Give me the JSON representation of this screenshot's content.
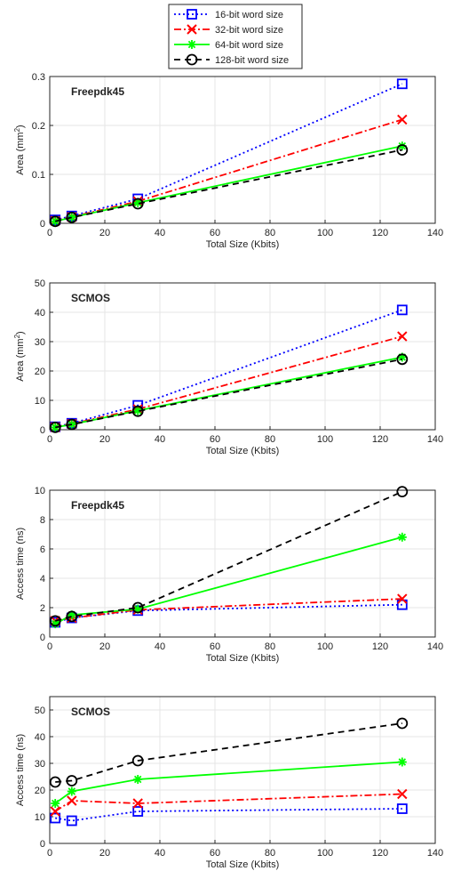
{
  "legend": [
    {
      "label": "16-bit word size",
      "color": "#0000ff",
      "marker": "square",
      "dash": "2 3"
    },
    {
      "label": "32-bit word size",
      "color": "#ff0000",
      "marker": "x",
      "dash": "8 3 2 3"
    },
    {
      "label": "64-bit word size",
      "color": "#00ff00",
      "marker": "asterisk",
      "dash": ""
    },
    {
      "label": "128-bit word size",
      "color": "#000000",
      "marker": "circle",
      "dash": "7 5"
    }
  ],
  "chart_data": [
    {
      "type": "line",
      "annotation": "Freepdk45",
      "xlabel": "Total Size (Kbits)",
      "ylabel": "Area (mm",
      "ylabel_sup": "2",
      "ylabel_end": ")",
      "xlim": [
        0,
        140
      ],
      "ylim": [
        0,
        0.3
      ],
      "xticks": [
        0,
        20,
        40,
        60,
        80,
        100,
        120,
        140
      ],
      "yticks": [
        0,
        0.1,
        0.2,
        0.3
      ],
      "x": [
        2,
        8,
        32,
        128
      ],
      "grid": true,
      "series": [
        {
          "name": "16-bit word size",
          "values": [
            0.007,
            0.015,
            0.05,
            0.285
          ]
        },
        {
          "name": "32-bit word size",
          "values": [
            0.005,
            0.013,
            0.045,
            0.212
          ]
        },
        {
          "name": "64-bit word size",
          "values": [
            0.004,
            0.012,
            0.042,
            0.158
          ]
        },
        {
          "name": "128-bit word size",
          "values": [
            0.004,
            0.012,
            0.04,
            0.15
          ]
        }
      ]
    },
    {
      "type": "line",
      "annotation": "SCMOS",
      "xlabel": "Total Size (Kbits)",
      "ylabel": "Area (mm",
      "ylabel_sup": "2",
      "ylabel_end": ")",
      "xlim": [
        0,
        140
      ],
      "ylim": [
        0,
        50
      ],
      "xticks": [
        0,
        20,
        40,
        60,
        80,
        100,
        120,
        140
      ],
      "yticks": [
        0,
        10,
        20,
        30,
        40,
        50
      ],
      "x": [
        2,
        8,
        32,
        128
      ],
      "grid": true,
      "series": [
        {
          "name": "16-bit word size",
          "values": [
            1.0,
            2.2,
            8.3,
            40.8
          ]
        },
        {
          "name": "32-bit word size",
          "values": [
            0.9,
            2.0,
            7.0,
            31.8
          ]
        },
        {
          "name": "64-bit word size",
          "values": [
            0.8,
            1.8,
            6.5,
            24.7
          ]
        },
        {
          "name": "128-bit word size",
          "values": [
            0.8,
            1.8,
            6.3,
            24.0
          ]
        }
      ]
    },
    {
      "type": "line",
      "annotation": "Freepdk45",
      "xlabel": "Total Size (Kbits)",
      "ylabel": "Access time (ns)",
      "ylabel_sup": "",
      "ylabel_end": "",
      "xlim": [
        0,
        140
      ],
      "ylim": [
        0,
        10
      ],
      "xticks": [
        0,
        20,
        40,
        60,
        80,
        100,
        120,
        140
      ],
      "yticks": [
        0,
        2,
        4,
        6,
        8,
        10
      ],
      "x": [
        2,
        8,
        32,
        128
      ],
      "grid": true,
      "series": [
        {
          "name": "16-bit word size",
          "values": [
            1.0,
            1.3,
            1.8,
            2.2
          ]
        },
        {
          "name": "32-bit word size",
          "values": [
            1.1,
            1.3,
            1.85,
            2.6
          ]
        },
        {
          "name": "64-bit word size",
          "values": [
            0.9,
            1.5,
            1.9,
            6.8
          ]
        },
        {
          "name": "128-bit word size",
          "values": [
            1.1,
            1.4,
            2.0,
            9.9
          ]
        }
      ]
    },
    {
      "type": "line",
      "annotation": "SCMOS",
      "xlabel": "Total Size (Kbits)",
      "ylabel": "Access time (ns)",
      "ylabel_sup": "",
      "ylabel_end": "",
      "xlim": [
        0,
        140
      ],
      "ylim": [
        0,
        55
      ],
      "xticks": [
        0,
        20,
        40,
        60,
        80,
        100,
        120,
        140
      ],
      "yticks": [
        0,
        10,
        20,
        30,
        40,
        50
      ],
      "x": [
        2,
        8,
        32,
        128
      ],
      "grid": true,
      "series": [
        {
          "name": "16-bit word size",
          "values": [
            9.5,
            8.5,
            12.0,
            13.0
          ]
        },
        {
          "name": "32-bit word size",
          "values": [
            12.0,
            16.0,
            15.0,
            18.5
          ]
        },
        {
          "name": "64-bit word size",
          "values": [
            15.0,
            19.5,
            24.0,
            30.5
          ]
        },
        {
          "name": "128-bit word size",
          "values": [
            23.0,
            23.5,
            31.0,
            45.0
          ]
        }
      ]
    }
  ]
}
